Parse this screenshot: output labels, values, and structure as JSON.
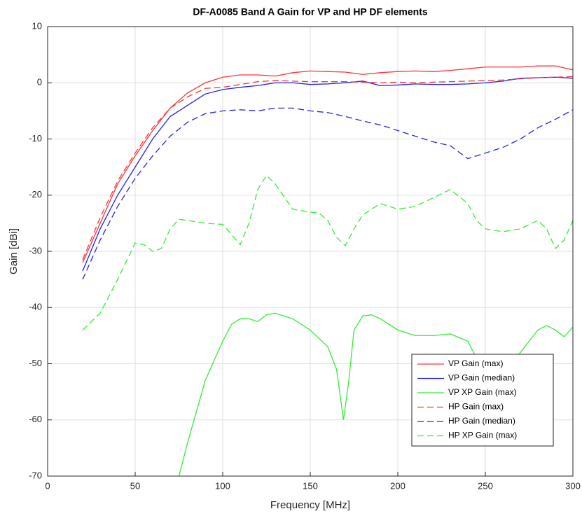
{
  "chart_data": {
    "type": "line",
    "title": "DF-A0085 Band A Gain for VP and HP DF elements",
    "x_label": "Frequency [MHz]",
    "y_label": "Gain [dBi]",
    "xlim": [
      0,
      300
    ],
    "xticks": [
      0,
      50,
      100,
      150,
      200,
      250,
      300
    ],
    "ylim": [
      -70,
      10
    ],
    "yticks": [
      -70,
      -60,
      -50,
      -40,
      -30,
      -20,
      -10,
      0,
      10
    ],
    "grid": true,
    "legend": "lower right",
    "series": [
      {
        "name": "VP Gain (max)",
        "color": "#ff3333",
        "dash": "solid",
        "x": [
          20,
          30,
          40,
          50,
          60,
          70,
          80,
          90,
          100,
          110,
          120,
          130,
          140,
          150,
          160,
          170,
          180,
          190,
          200,
          210,
          220,
          230,
          240,
          250,
          260,
          270,
          280,
          290,
          300
        ],
        "values": [
          -32,
          -25,
          -18,
          -13,
          -8.5,
          -4.5,
          -1.8,
          0,
          1,
          1.4,
          1.4,
          1.2,
          1.8,
          2.1,
          2,
          1.9,
          1.5,
          1.8,
          2,
          2.1,
          2,
          2.2,
          2.5,
          2.8,
          2.8,
          2.8,
          3,
          3,
          2.3
        ]
      },
      {
        "name": "VP Gain (median)",
        "color": "#2222ee",
        "dash": "solid",
        "x": [
          20,
          30,
          40,
          50,
          60,
          70,
          80,
          90,
          100,
          110,
          120,
          130,
          140,
          150,
          160,
          170,
          180,
          190,
          200,
          210,
          220,
          230,
          240,
          250,
          260,
          270,
          280,
          290,
          300
        ],
        "values": [
          -33.5,
          -26,
          -20,
          -15,
          -10,
          -6,
          -4,
          -2,
          -1.2,
          -0.8,
          -0.5,
          0,
          0,
          -0.3,
          -0.2,
          0,
          0.3,
          -0.5,
          -0.4,
          -0.2,
          -0.3,
          -0.3,
          -0.2,
          0,
          0.3,
          0.8,
          0.9,
          1,
          0.8
        ]
      },
      {
        "name": "VP XP Gain (max)",
        "color": "#33ee33",
        "dash": "solid",
        "x": [
          75,
          80,
          90,
          100,
          105,
          110,
          115,
          120,
          125,
          130,
          140,
          150,
          160,
          165,
          169,
          172,
          175,
          180,
          185,
          190,
          200,
          210,
          220,
          230,
          240,
          250,
          260,
          270,
          280,
          285,
          290,
          295,
          300
        ],
        "values": [
          -70,
          -64,
          -53,
          -46,
          -43,
          -42,
          -42,
          -42.5,
          -41.3,
          -41,
          -42,
          -44,
          -47,
          -51,
          -60,
          -53,
          -44,
          -41.5,
          -41.3,
          -42,
          -44,
          -45,
          -45,
          -44.7,
          -46,
          -52,
          -52,
          -48,
          -44,
          -43.2,
          -44,
          -45.2,
          -43.5
        ]
      },
      {
        "name": "HP Gain (max)",
        "color": "#ff3333",
        "dash": "dashed",
        "x": [
          20,
          30,
          40,
          50,
          60,
          70,
          80,
          90,
          100,
          110,
          120,
          130,
          140,
          150,
          160,
          170,
          180,
          190,
          200,
          210,
          220,
          230,
          240,
          250,
          260,
          270,
          280,
          290,
          300
        ],
        "values": [
          -31.5,
          -24,
          -17.5,
          -12.5,
          -8,
          -4.5,
          -2.5,
          -1,
          -0.8,
          -0.3,
          0.2,
          0.4,
          0.3,
          0.2,
          0.2,
          0.2,
          0.1,
          0,
          0.1,
          0,
          0.1,
          0.2,
          0.3,
          0.4,
          0.5,
          0.7,
          0.9,
          1,
          1.1
        ]
      },
      {
        "name": "HP Gain (median)",
        "color": "#2222ee",
        "dash": "dashed",
        "x": [
          20,
          30,
          40,
          50,
          60,
          70,
          80,
          90,
          100,
          110,
          120,
          130,
          140,
          150,
          160,
          170,
          180,
          190,
          200,
          210,
          220,
          230,
          240,
          250,
          260,
          270,
          280,
          290,
          300
        ],
        "values": [
          -35,
          -28,
          -22,
          -17,
          -13,
          -9.5,
          -7,
          -5.5,
          -5,
          -4.8,
          -5,
          -4.5,
          -4.5,
          -5,
          -5.3,
          -6,
          -6.8,
          -7.5,
          -8.5,
          -9.5,
          -10.5,
          -11.2,
          -13.5,
          -12.5,
          -11.5,
          -10,
          -8,
          -6.5,
          -4.8
        ]
      },
      {
        "name": "HP XP Gain (max)",
        "color": "#33ee33",
        "dash": "dashed",
        "x": [
          20,
          30,
          40,
          50,
          55,
          60,
          65,
          70,
          75,
          80,
          90,
          100,
          105,
          110,
          115,
          120,
          125,
          130,
          140,
          150,
          155,
          160,
          165,
          170,
          175,
          180,
          190,
          200,
          210,
          220,
          230,
          240,
          245,
          250,
          260,
          270,
          280,
          285,
          290,
          295,
          300
        ],
        "values": [
          -44,
          -41,
          -35,
          -28.5,
          -28.8,
          -30,
          -29.5,
          -26,
          -24.3,
          -24.5,
          -25,
          -25.2,
          -27,
          -28.8,
          -25,
          -19,
          -16.5,
          -18,
          -22.5,
          -23,
          -23.2,
          -24.5,
          -27.5,
          -29,
          -26,
          -23.5,
          -21.5,
          -22.5,
          -22,
          -20.5,
          -19,
          -21.5,
          -24.5,
          -26,
          -26.5,
          -26,
          -24.5,
          -26,
          -29.5,
          -28,
          -24.5
        ]
      }
    ]
  }
}
